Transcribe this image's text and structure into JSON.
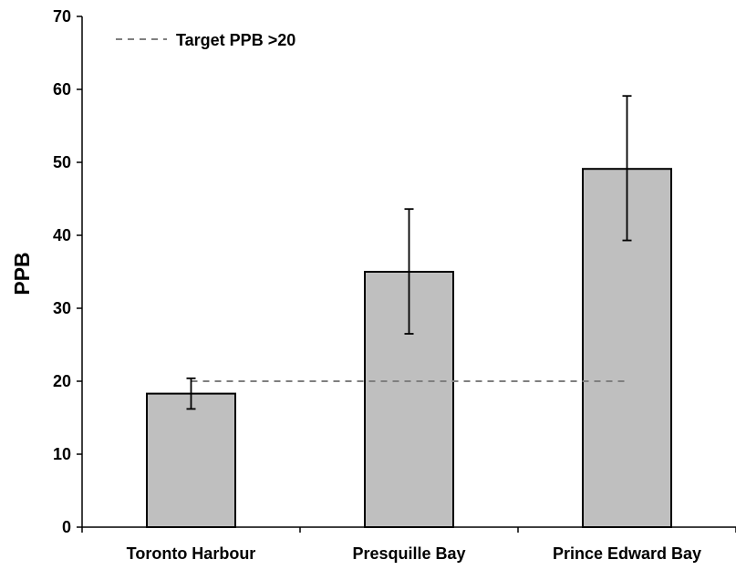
{
  "chart_data": {
    "type": "bar",
    "title": "",
    "xlabel": "",
    "ylabel": "PPB",
    "ylim": [
      0,
      70
    ],
    "yticks": [
      0,
      10,
      20,
      30,
      40,
      50,
      60,
      70
    ],
    "grid": false,
    "categories": [
      "Toronto Harbour",
      "Presquille Bay",
      "Prince Edward Bay"
    ],
    "values": [
      18.3,
      35.0,
      49.1
    ],
    "error_bars": [
      {
        "low": 16.2,
        "high": 20.4
      },
      {
        "low": 26.5,
        "high": 43.6
      },
      {
        "low": 39.3,
        "high": 59.1
      }
    ],
    "reference_line": {
      "label": "Target PPB >20",
      "value": 20,
      "style": "dashed",
      "color": "#7f7f7f"
    },
    "legend": {
      "position": "top-left",
      "entries": [
        "Target PPB >20"
      ]
    },
    "colors": {
      "bar_fill": "#bfbfbf",
      "bar_stroke": "#000000",
      "axis": "#000000"
    }
  }
}
